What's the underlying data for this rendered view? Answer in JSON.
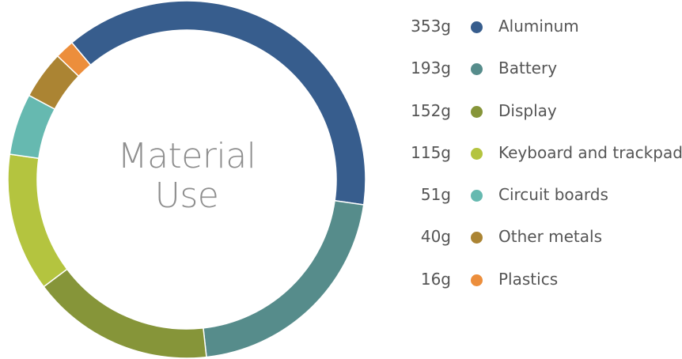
{
  "chart_data": {
    "type": "pie",
    "title": "Material Use",
    "title_lines": [
      "Material",
      "Use"
    ],
    "donut": true,
    "legend_placement": "right",
    "series": [
      {
        "label": "Aluminum",
        "value": 353,
        "display": "353g",
        "color": "#375d8d"
      },
      {
        "label": "Battery",
        "value": 193,
        "display": "193g",
        "color": "#568c8b"
      },
      {
        "label": "Display",
        "value": 152,
        "display": "152g",
        "color": "#869539"
      },
      {
        "label": "Keyboard and trackpad",
        "value": 115,
        "display": "115g",
        "color": "#b4c43f"
      },
      {
        "label": "Circuit boards",
        "value": 51,
        "display": "51g",
        "color": "#66b9b0"
      },
      {
        "label": "Other metals",
        "value": 40,
        "display": "40g",
        "color": "#ab8433"
      },
      {
        "label": "Plastics",
        "value": 16,
        "display": "16g",
        "color": "#ec8e3c"
      }
    ]
  }
}
